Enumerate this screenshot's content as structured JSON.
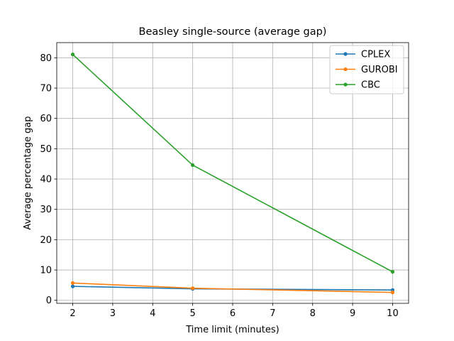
{
  "chart_data": {
    "type": "line",
    "title": "Beasley single-source (average gap)",
    "xlabel": "Time limit (minutes)",
    "ylabel": "Average percentage gap",
    "xlim": [
      1.6,
      10.4
    ],
    "ylim": [
      -1.0,
      85.0
    ],
    "xticks": [
      2,
      3,
      4,
      5,
      6,
      7,
      8,
      9,
      10
    ],
    "yticks": [
      0,
      10,
      20,
      30,
      40,
      50,
      60,
      70,
      80
    ],
    "grid": true,
    "legend_position": "top-right",
    "x": [
      2,
      5,
      10
    ],
    "series": [
      {
        "name": "CPLEX",
        "color": "#1f77b4",
        "values": [
          4.6,
          3.8,
          3.4
        ]
      },
      {
        "name": "GUROBI",
        "color": "#ff7f0e",
        "values": [
          5.7,
          4.0,
          2.6
        ]
      },
      {
        "name": "CBC",
        "color": "#2ca02c",
        "values": [
          81.1,
          44.6,
          9.4
        ]
      }
    ]
  }
}
